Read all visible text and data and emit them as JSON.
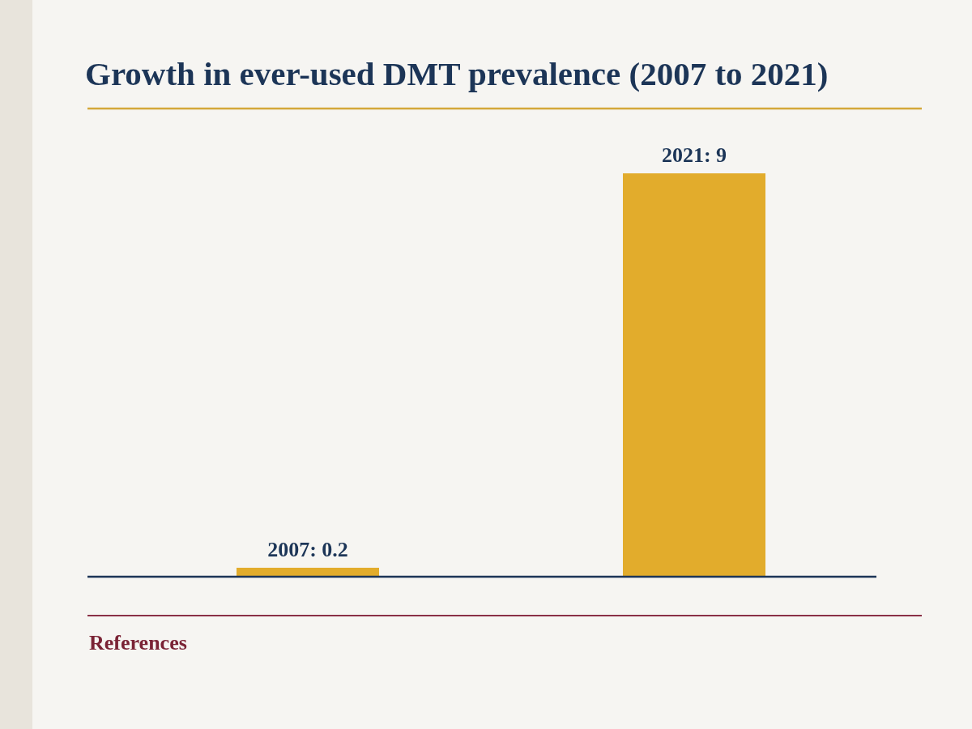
{
  "chart_data": {
    "type": "bar",
    "title": "Growth in ever-used DMT prevalence (2007 to 2021)",
    "categories": [
      null,
      null
    ],
    "values": [
      0.2,
      9
    ],
    "color": "#e2ac2c",
    "value_labels": [
      "2007: 0.2",
      "2021: 9"
    ],
    "annotations": [
      "References"
    ]
  }
}
